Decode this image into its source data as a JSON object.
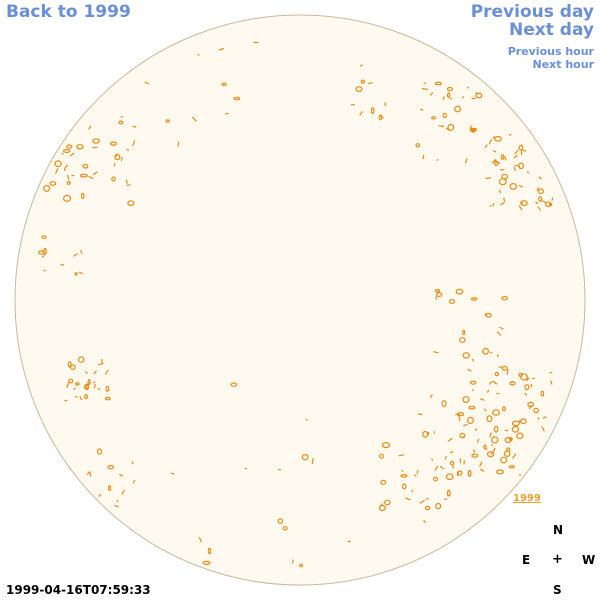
{
  "nav": {
    "back_label": "Back to 1999",
    "prev_day_label": "Previous day",
    "next_day_label": "Next day",
    "prev_hour_label": "Previous hour",
    "next_hour_label": "Next hour"
  },
  "image": {
    "year_link": "1999",
    "timestamp": "1999-04-16T07:59:33",
    "colors": {
      "disk_fill": "#fffaf0",
      "disk_edge": "#c8b89a",
      "feature": "#e88a10",
      "nav": "#6b8fd6"
    }
  },
  "compass": {
    "north": "N",
    "east": "E",
    "center": "+",
    "west": "W",
    "south": "S"
  }
}
